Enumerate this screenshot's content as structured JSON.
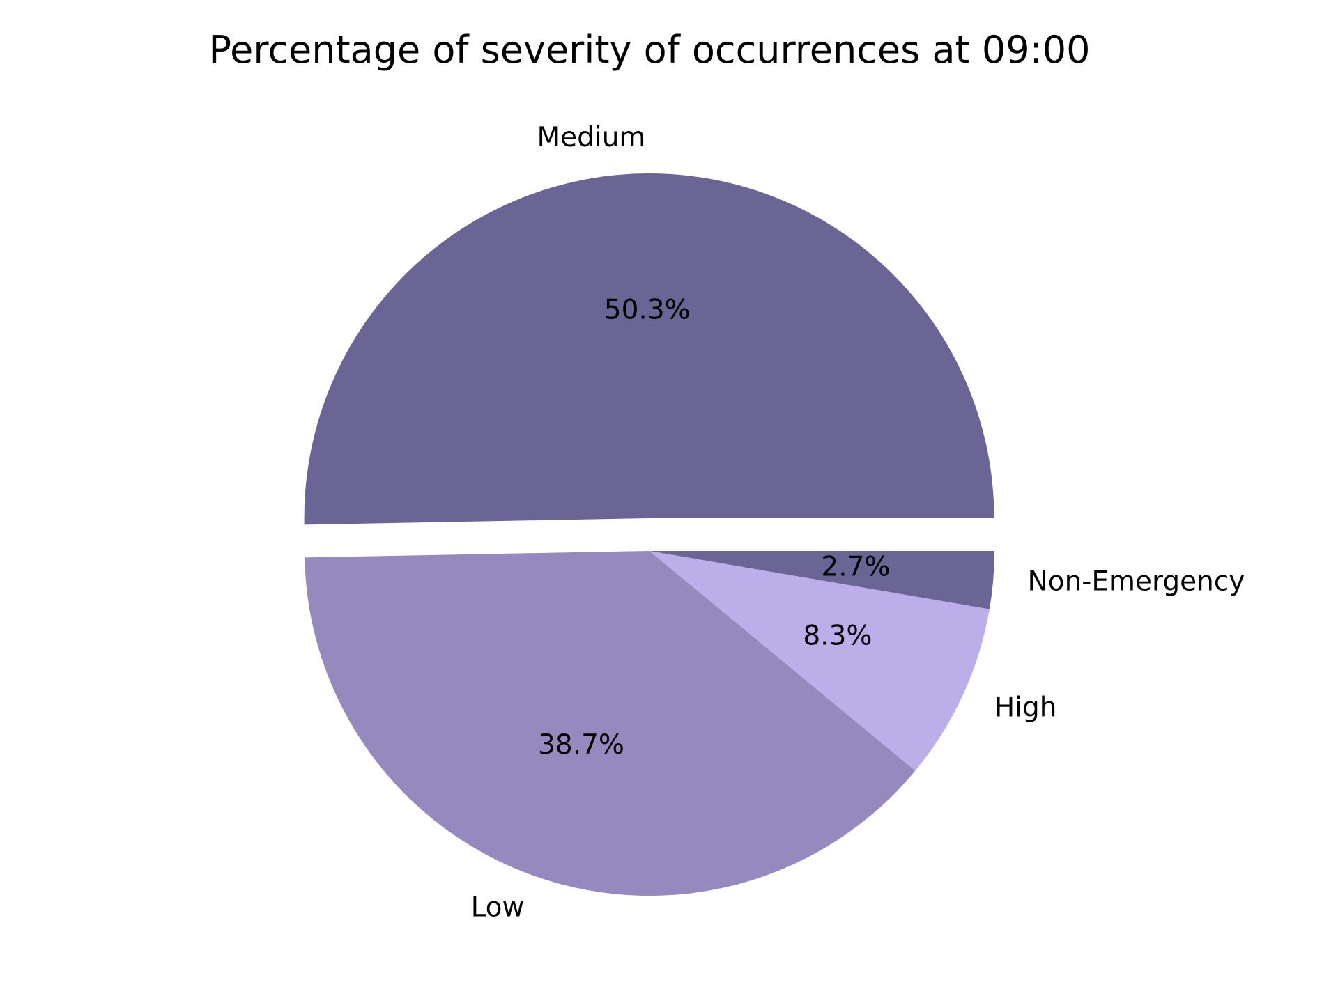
{
  "chart_data": {
    "type": "pie",
    "title": "Percentage of severity of occurrences at 09:00",
    "slices": [
      {
        "label": "Medium",
        "value": 50.3,
        "pct_label": "50.3%",
        "color": "#6a6595",
        "exploded": true
      },
      {
        "label": "Low",
        "value": 38.7,
        "pct_label": "38.7%",
        "color": "#9689be",
        "exploded": false
      },
      {
        "label": "High",
        "value": 8.3,
        "pct_label": "8.3%",
        "color": "#bcaee8",
        "exploded": false
      },
      {
        "label": "Non-Emergency",
        "value": 2.7,
        "pct_label": "2.7%",
        "color": "#6a6595",
        "exploded": false
      }
    ],
    "start_angle_deg": 0,
    "direction": "counterclockwise",
    "legend": "none"
  }
}
